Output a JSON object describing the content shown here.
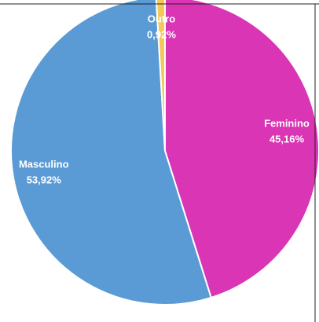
{
  "chart_data": {
    "type": "pie",
    "categories": [
      "Feminino",
      "Masculino",
      "Outro"
    ],
    "values": [
      45.16,
      53.92,
      0.92
    ],
    "value_labels": [
      "45,16%",
      "53,92%",
      "0,92%"
    ],
    "colors": [
      "#d935b5",
      "#5b9bd5",
      "#f5c85a"
    ]
  }
}
